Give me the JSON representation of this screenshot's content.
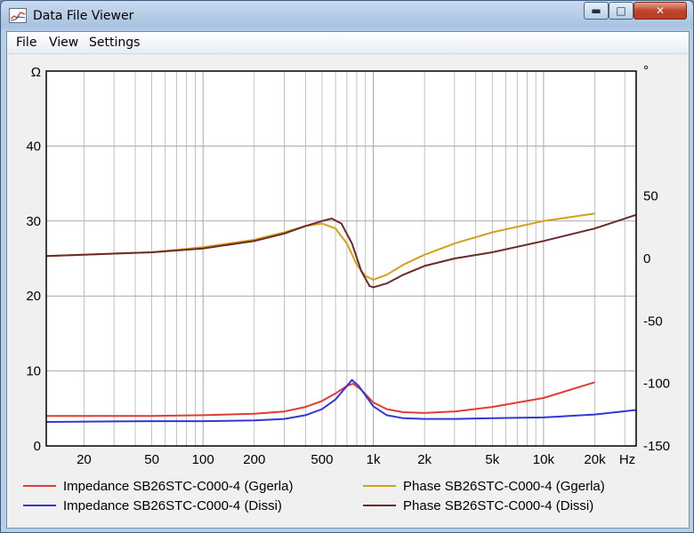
{
  "window": {
    "title": "Data File Viewer",
    "minimize": "▬",
    "maximize": "□",
    "close": "✕"
  },
  "menu": {
    "items": [
      "File",
      "View",
      "Settings"
    ]
  },
  "chart_data": {
    "type": "line",
    "xscale": "log",
    "xlim": [
      12,
      35000
    ],
    "x_ticks": [
      20,
      50,
      100,
      200,
      500,
      1000,
      2000,
      5000,
      10000,
      20000
    ],
    "x_tick_labels": [
      "20",
      "50",
      "100",
      "200",
      "500",
      "1k",
      "2k",
      "5k",
      "10k",
      "20k"
    ],
    "x_unit": "Hz",
    "left_axis": {
      "unit": "Ω",
      "ylim": [
        0,
        50
      ],
      "ticks": [
        0,
        10,
        20,
        30,
        40
      ]
    },
    "right_axis": {
      "unit": "°",
      "ylim": [
        -150,
        150
      ],
      "ticks": [
        -150,
        -100,
        -50,
        0,
        50
      ]
    },
    "grid": true,
    "series": [
      {
        "name": "Impedance SB26STC-C000-4 (Ggerla)",
        "axis": "left",
        "color": "#e23b36",
        "points": [
          [
            12,
            4.0
          ],
          [
            50,
            4.0
          ],
          [
            100,
            4.1
          ],
          [
            200,
            4.3
          ],
          [
            300,
            4.6
          ],
          [
            400,
            5.2
          ],
          [
            500,
            6.0
          ],
          [
            600,
            7.0
          ],
          [
            700,
            8.0
          ],
          [
            760,
            8.3
          ],
          [
            850,
            7.5
          ],
          [
            1000,
            5.8
          ],
          [
            1200,
            4.9
          ],
          [
            1500,
            4.5
          ],
          [
            2000,
            4.4
          ],
          [
            3000,
            4.6
          ],
          [
            5000,
            5.2
          ],
          [
            10000,
            6.4
          ],
          [
            20000,
            8.5
          ]
        ]
      },
      {
        "name": "Impedance SB26STC-C000-4 (Dissi)",
        "axis": "left",
        "color": "#3535d6",
        "points": [
          [
            12,
            3.2
          ],
          [
            50,
            3.3
          ],
          [
            100,
            3.3
          ],
          [
            200,
            3.4
          ],
          [
            300,
            3.6
          ],
          [
            400,
            4.1
          ],
          [
            500,
            4.9
          ],
          [
            600,
            6.2
          ],
          [
            700,
            8.0
          ],
          [
            750,
            8.8
          ],
          [
            820,
            8.0
          ],
          [
            1000,
            5.3
          ],
          [
            1200,
            4.1
          ],
          [
            1500,
            3.7
          ],
          [
            2000,
            3.6
          ],
          [
            3000,
            3.6
          ],
          [
            5000,
            3.7
          ],
          [
            10000,
            3.8
          ],
          [
            20000,
            4.2
          ],
          [
            35000,
            4.8
          ]
        ]
      },
      {
        "name": "Phase SB26STC-C000-4 (Ggerla)",
        "axis": "right",
        "color": "#d4a017",
        "points": [
          [
            12,
            2
          ],
          [
            50,
            5
          ],
          [
            100,
            9
          ],
          [
            200,
            15
          ],
          [
            300,
            21
          ],
          [
            400,
            26
          ],
          [
            500,
            28
          ],
          [
            600,
            24
          ],
          [
            700,
            12
          ],
          [
            800,
            -5
          ],
          [
            900,
            -14
          ],
          [
            1000,
            -17
          ],
          [
            1200,
            -13
          ],
          [
            1500,
            -5
          ],
          [
            2000,
            3
          ],
          [
            3000,
            12
          ],
          [
            5000,
            21
          ],
          [
            10000,
            30
          ],
          [
            20000,
            36
          ]
        ]
      },
      {
        "name": "Phase SB26STC-C000-4 (Dissi)",
        "axis": "right",
        "color": "#6b2a2a",
        "points": [
          [
            12,
            2
          ],
          [
            50,
            5
          ],
          [
            100,
            8
          ],
          [
            200,
            14
          ],
          [
            300,
            20
          ],
          [
            400,
            26
          ],
          [
            500,
            30
          ],
          [
            570,
            32
          ],
          [
            650,
            28
          ],
          [
            750,
            12
          ],
          [
            850,
            -10
          ],
          [
            950,
            -22
          ],
          [
            1000,
            -23
          ],
          [
            1200,
            -20
          ],
          [
            1500,
            -13
          ],
          [
            2000,
            -6
          ],
          [
            3000,
            0
          ],
          [
            5000,
            5
          ],
          [
            10000,
            14
          ],
          [
            20000,
            24
          ],
          [
            35000,
            35
          ]
        ]
      }
    ],
    "legend": {
      "placement": "bottom",
      "entries": [
        "Impedance SB26STC-C000-4 (Ggerla)",
        "Phase SB26STC-C000-4 (Ggerla)",
        "Impedance SB26STC-C000-4 (Dissi)",
        "Phase SB26STC-C000-4 (Dissi)"
      ]
    }
  }
}
